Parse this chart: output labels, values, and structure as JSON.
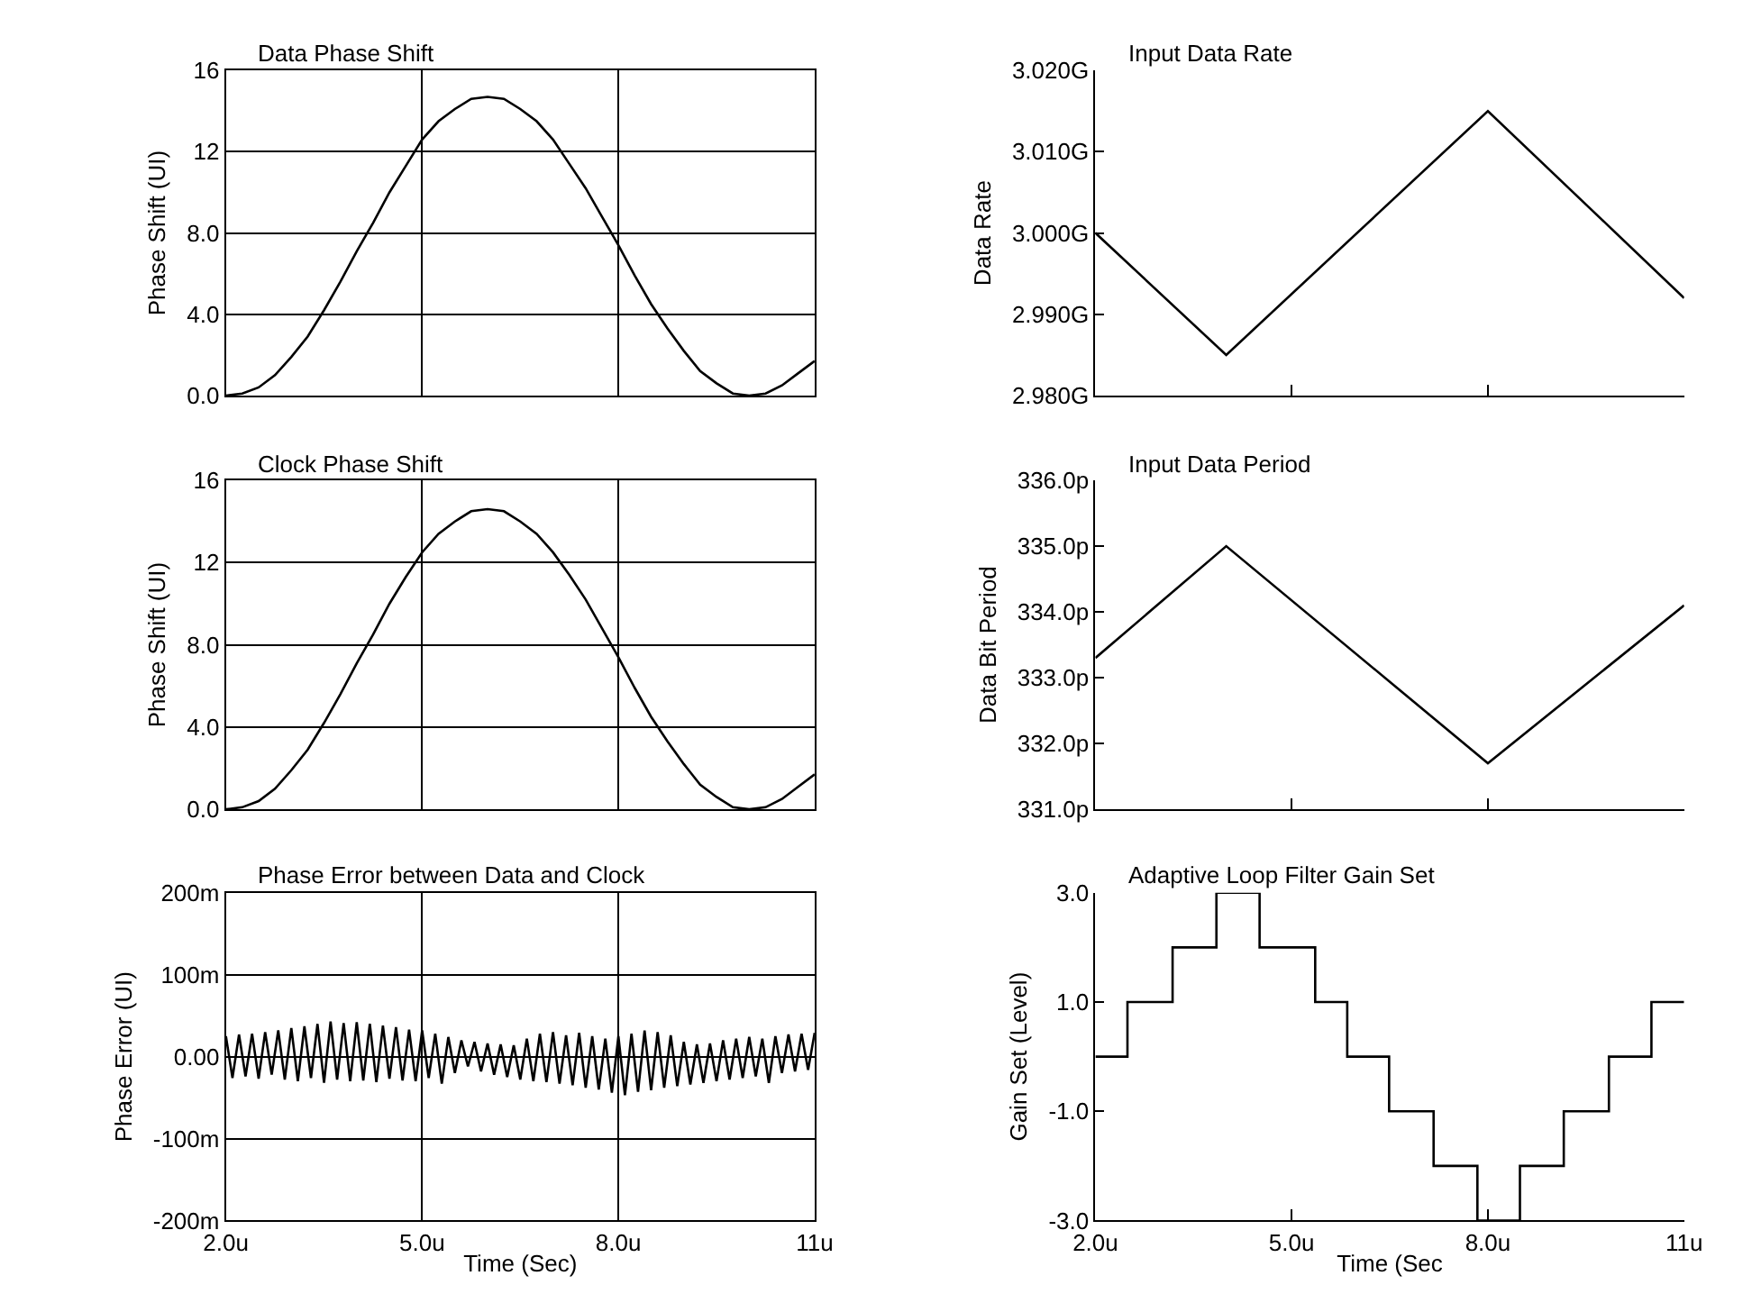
{
  "chart_data": [
    {
      "type": "line",
      "title": "Data Phase Shift",
      "ylabel": "Phase Shift (UI)",
      "grid": true,
      "tick_labels": "y",
      "xlim": [
        2,
        11
      ],
      "xticks": [
        {
          "value": 2,
          "label": null
        },
        {
          "value": 5,
          "label": null
        },
        {
          "value": 8,
          "label": null
        },
        {
          "value": 11,
          "label": null
        }
      ],
      "ylim": [
        0,
        16
      ],
      "yticks": [
        {
          "value": 0,
          "label": "0.0"
        },
        {
          "value": 4,
          "label": "4.0"
        },
        {
          "value": 8,
          "label": "8.0"
        },
        12,
        16
      ],
      "x": [
        2.0,
        2.25,
        2.5,
        2.75,
        3.0,
        3.25,
        3.5,
        3.75,
        4.0,
        4.25,
        4.5,
        4.75,
        5.0,
        5.25,
        5.5,
        5.75,
        6.0,
        6.25,
        6.5,
        6.75,
        7.0,
        7.25,
        7.5,
        7.75,
        8.0,
        8.25,
        8.5,
        8.75,
        9.0,
        9.25,
        9.5,
        9.75,
        10.0,
        10.25,
        10.5,
        10.75,
        11.0
      ],
      "series": [
        {
          "color": "#000000",
          "values": [
            0.0,
            0.1,
            0.4,
            1.0,
            1.9,
            2.9,
            4.2,
            5.6,
            7.1,
            8.5,
            10.0,
            11.3,
            12.6,
            13.5,
            14.1,
            14.6,
            14.7,
            14.6,
            14.1,
            13.5,
            12.6,
            11.4,
            10.2,
            8.8,
            7.4,
            5.9,
            4.5,
            3.3,
            2.2,
            1.2,
            0.6,
            0.1,
            0.0,
            0.1,
            0.5,
            1.1,
            1.7
          ]
        }
      ]
    },
    {
      "type": "line",
      "title": "Input Data Rate",
      "ylabel": "Data Rate",
      "tick_labels": "y",
      "xlim": [
        2,
        11
      ],
      "xticks": [
        {
          "value": 2,
          "label": null
        },
        {
          "value": 5,
          "label": null
        },
        {
          "value": 8,
          "label": null
        },
        {
          "value": 11,
          "label": null
        }
      ],
      "ylim": [
        2.98,
        3.02
      ],
      "yticks": [
        {
          "value": 2.98,
          "label": "2.980G"
        },
        {
          "value": 2.99,
          "label": "2.990G"
        },
        {
          "value": 3.0,
          "label": "3.000G"
        },
        {
          "value": 3.01,
          "label": "3.010G"
        },
        {
          "value": 3.02,
          "label": "3.020G"
        }
      ],
      "x": [
        2,
        4,
        8,
        11
      ],
      "series": [
        {
          "color": "#000000",
          "values": [
            3.0,
            2.985,
            3.015,
            2.992
          ]
        }
      ]
    },
    {
      "type": "line",
      "title": "Clock Phase Shift",
      "ylabel": "Phase Shift (UI)",
      "grid": true,
      "tick_labels": "y",
      "xlim": [
        2,
        11
      ],
      "xticks": [
        {
          "value": 2,
          "label": null
        },
        {
          "value": 5,
          "label": null
        },
        {
          "value": 8,
          "label": null
        },
        {
          "value": 11,
          "label": null
        }
      ],
      "ylim": [
        0,
        16
      ],
      "yticks": [
        {
          "value": 0,
          "label": "0.0"
        },
        {
          "value": 4,
          "label": "4.0"
        },
        {
          "value": 8,
          "label": "8.0"
        },
        12,
        16
      ],
      "x": [
        2.0,
        2.25,
        2.5,
        2.75,
        3.0,
        3.25,
        3.5,
        3.75,
        4.0,
        4.25,
        4.5,
        4.75,
        5.0,
        5.25,
        5.5,
        5.75,
        6.0,
        6.25,
        6.5,
        6.75,
        7.0,
        7.25,
        7.5,
        7.75,
        8.0,
        8.25,
        8.5,
        8.75,
        9.0,
        9.25,
        9.5,
        9.75,
        10.0,
        10.25,
        10.5,
        10.75,
        11.0
      ],
      "series": [
        {
          "color": "#000000",
          "values": [
            0.0,
            0.1,
            0.4,
            1.0,
            1.9,
            2.9,
            4.2,
            5.6,
            7.1,
            8.5,
            10.0,
            11.3,
            12.5,
            13.4,
            14.0,
            14.5,
            14.6,
            14.5,
            14.0,
            13.4,
            12.5,
            11.4,
            10.2,
            8.8,
            7.4,
            5.9,
            4.5,
            3.3,
            2.2,
            1.2,
            0.6,
            0.1,
            0.0,
            0.1,
            0.5,
            1.1,
            1.7
          ]
        }
      ]
    },
    {
      "type": "line",
      "title": "Input Data Period",
      "ylabel": "Data Bit Period",
      "tick_labels": "y",
      "xlim": [
        2,
        11
      ],
      "xticks": [
        {
          "value": 2,
          "label": null
        },
        {
          "value": 5,
          "label": null
        },
        {
          "value": 8,
          "label": null
        },
        {
          "value": 11,
          "label": null
        }
      ],
      "ylim": [
        331,
        336
      ],
      "yticks": [
        {
          "value": 331,
          "label": "331.0p"
        },
        {
          "value": 332,
          "label": "332.0p"
        },
        {
          "value": 333,
          "label": "333.0p"
        },
        {
          "value": 334,
          "label": "334.0p"
        },
        {
          "value": 335,
          "label": "335.0p"
        },
        {
          "value": 336,
          "label": "336.0p"
        }
      ],
      "x": [
        2,
        4,
        8,
        11
      ],
      "series": [
        {
          "color": "#000000",
          "values": [
            333.3,
            335.0,
            331.7,
            334.1
          ]
        }
      ]
    },
    {
      "type": "line",
      "title": "Phase Error between Data and Clock",
      "ylabel": "Phase Error (UI)",
      "xlabel": "Time (Sec)",
      "grid": true,
      "xlim": [
        2,
        11
      ],
      "xticks": [
        {
          "value": 2,
          "label": "2.0u"
        },
        {
          "value": 5,
          "label": "5.0u"
        },
        {
          "value": 8,
          "label": "8.0u"
        },
        {
          "value": 11,
          "label": "11u"
        }
      ],
      "ylim": [
        -200,
        200
      ],
      "yticks": [
        {
          "value": -200,
          "label": "-200m"
        },
        {
          "value": -100,
          "label": "-100m"
        },
        {
          "value": 0,
          "label": "0.00"
        },
        {
          "value": 100,
          "label": "100m"
        },
        {
          "value": 200,
          "label": "200m"
        }
      ],
      "x": [
        2.0,
        2.1,
        2.2,
        2.3,
        2.4,
        2.5,
        2.6,
        2.7,
        2.8,
        2.9,
        3.0,
        3.1,
        3.2,
        3.3,
        3.4,
        3.5,
        3.6,
        3.7,
        3.8,
        3.9,
        4.0,
        4.1,
        4.2,
        4.3,
        4.4,
        4.5,
        4.6,
        4.7,
        4.8,
        4.9,
        5.0,
        5.1,
        5.2,
        5.3,
        5.4,
        5.5,
        5.6,
        5.7,
        5.8,
        5.9,
        6.0,
        6.1,
        6.2,
        6.3,
        6.4,
        6.5,
        6.6,
        6.7,
        6.8,
        6.9,
        7.0,
        7.1,
        7.2,
        7.3,
        7.4,
        7.5,
        7.6,
        7.7,
        7.8,
        7.9,
        8.0,
        8.1,
        8.2,
        8.3,
        8.4,
        8.5,
        8.6,
        8.7,
        8.8,
        8.9,
        9.0,
        9.1,
        9.2,
        9.3,
        9.4,
        9.5,
        9.6,
        9.7,
        9.8,
        9.9,
        10.0,
        10.1,
        10.2,
        10.3,
        10.4,
        10.5,
        10.6,
        10.7,
        10.8,
        10.9,
        11.0
      ],
      "series": [
        {
          "color": "#000000",
          "values": [
            25,
            -26,
            27,
            -24,
            28,
            -27,
            30,
            -22,
            32,
            -28,
            35,
            -30,
            37,
            -26,
            40,
            -32,
            43,
            -28,
            41,
            -30,
            42,
            -29,
            40,
            -31,
            38,
            -27,
            36,
            -29,
            33,
            -30,
            32,
            -26,
            28,
            -33,
            24,
            -20,
            20,
            -12,
            18,
            -18,
            16,
            -22,
            15,
            -25,
            14,
            -28,
            22,
            -30,
            28,
            -31,
            30,
            -33,
            26,
            -35,
            29,
            -38,
            25,
            -40,
            22,
            -44,
            25,
            -47,
            28,
            -43,
            32,
            -41,
            30,
            -38,
            26,
            -36,
            18,
            -34,
            15,
            -32,
            16,
            -30,
            20,
            -28,
            22,
            -26,
            24,
            -24,
            22,
            -32,
            25,
            -20,
            27,
            -18,
            28,
            -16,
            29
          ]
        }
      ]
    },
    {
      "type": "step",
      "title": "Adaptive Loop Filter Gain Set",
      "ylabel": "Gain Set (Level)",
      "xlabel": "Time (Sec",
      "xlim": [
        2,
        11
      ],
      "xticks": [
        {
          "value": 2,
          "label": "2.0u"
        },
        {
          "value": 5,
          "label": "5.0u"
        },
        {
          "value": 8,
          "label": "8.0u"
        },
        {
          "value": 11,
          "label": "11u"
        }
      ],
      "ylim": [
        -3,
        3
      ],
      "yticks": [
        {
          "value": -3,
          "label": "-3.0"
        },
        {
          "value": -1,
          "label": "-1.0"
        },
        {
          "value": 1,
          "label": "1.0"
        },
        {
          "value": 3,
          "label": "3.0"
        }
      ],
      "x": [
        2.0,
        2.49,
        3.18,
        3.85,
        4.51,
        5.36,
        5.85,
        6.49,
        7.17,
        7.84,
        8.49,
        9.16,
        9.85,
        10.5,
        11.0
      ],
      "series": [
        {
          "color": "#000000",
          "values": [
            0,
            1,
            2,
            3,
            2,
            1,
            0,
            -1,
            -2,
            -3,
            -2,
            -1,
            0,
            1,
            1
          ]
        }
      ]
    }
  ]
}
